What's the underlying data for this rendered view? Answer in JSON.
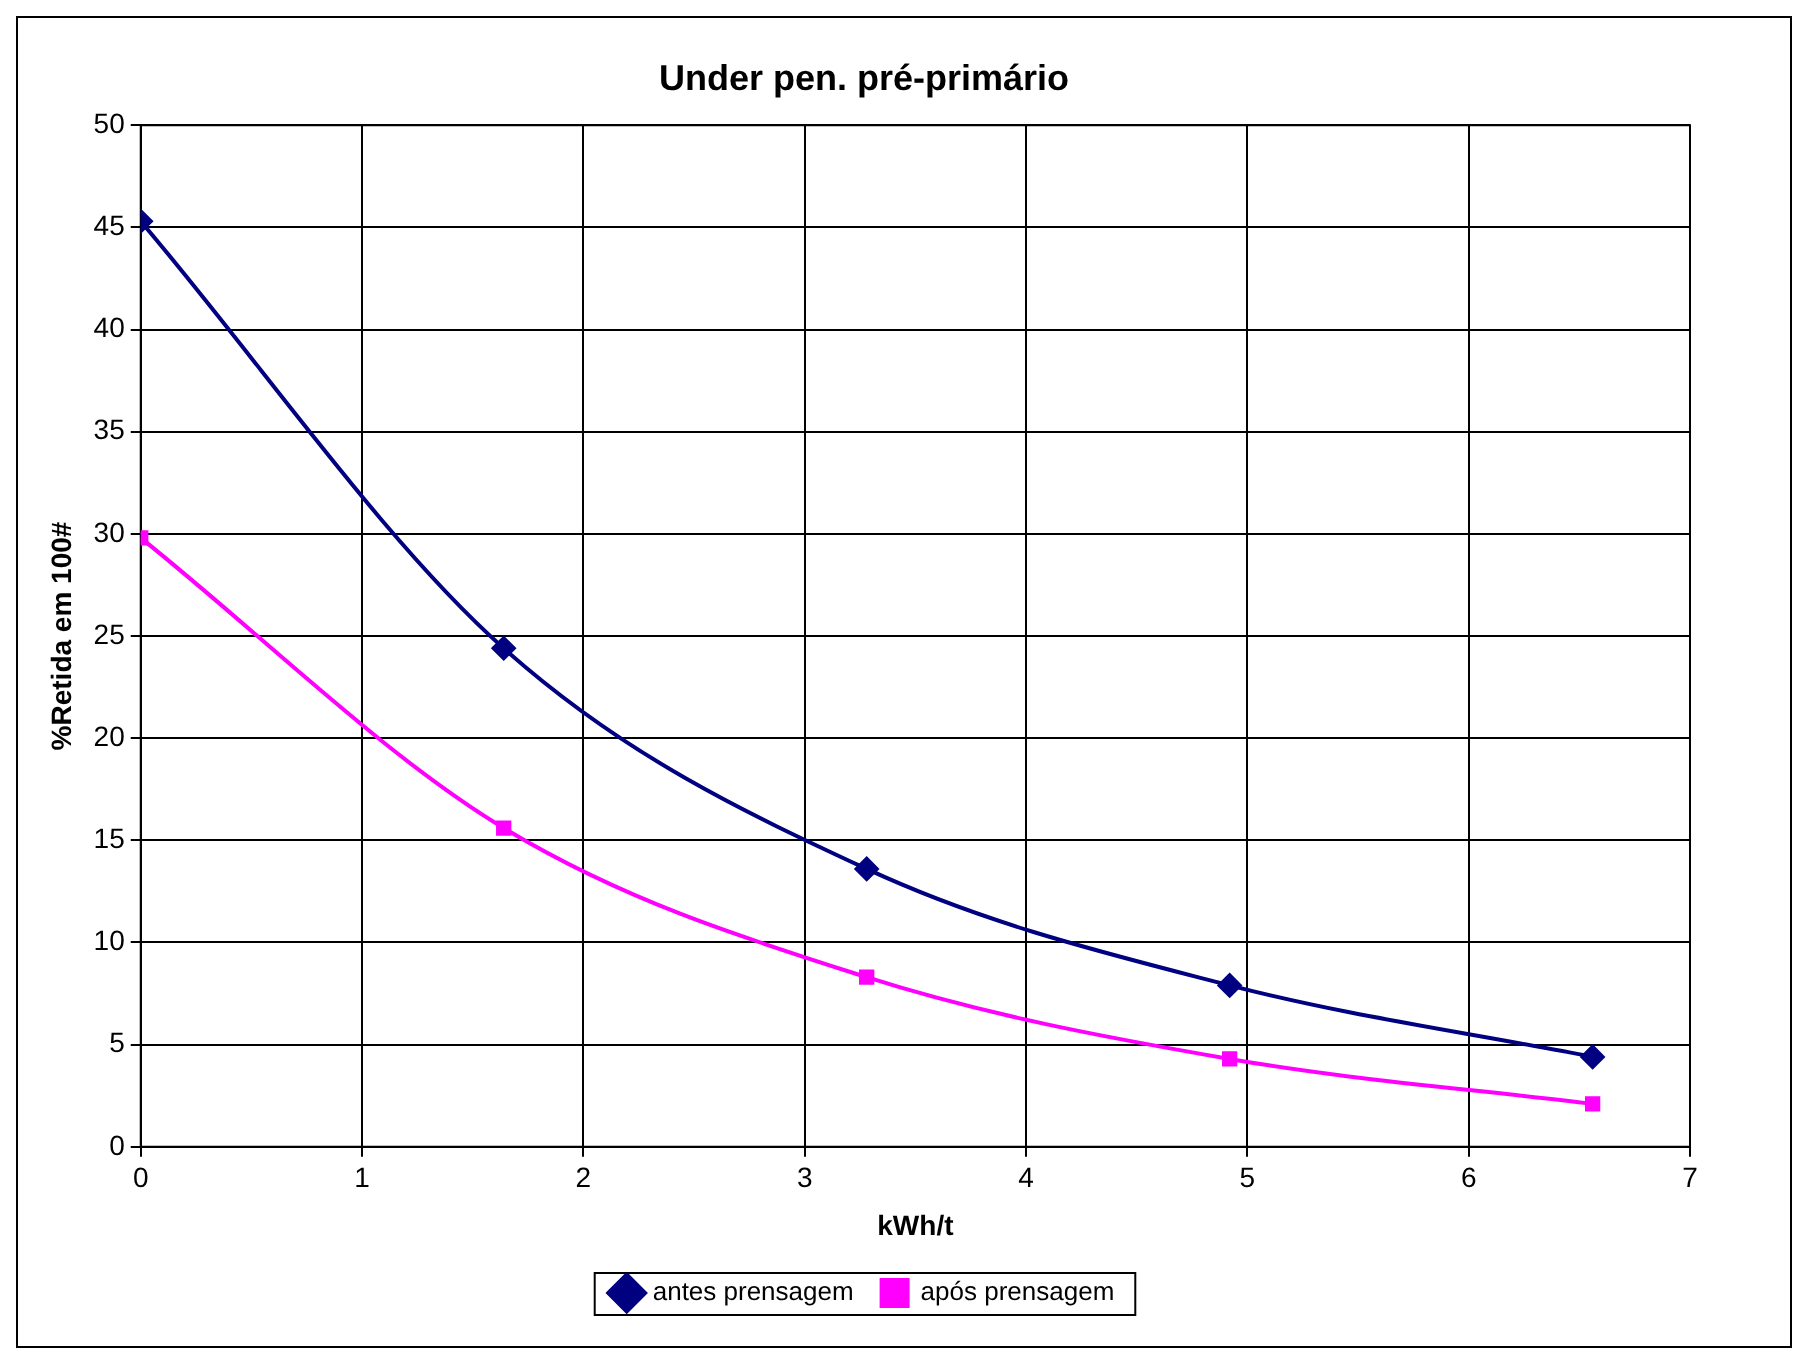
{
  "chart_data": {
    "type": "line",
    "title": "Under pen. pré-primário",
    "xlabel": "kWh/t",
    "ylabel": "%Retida em 100#",
    "xlim": [
      0,
      7
    ],
    "xticks": [
      0,
      1,
      2,
      3,
      4,
      5,
      6,
      7
    ],
    "ylim": [
      0,
      50
    ],
    "yticks": [
      0,
      5,
      10,
      15,
      20,
      25,
      30,
      35,
      40,
      45,
      50
    ],
    "grid": true,
    "legend": "bottom",
    "series": [
      {
        "name": "antes prensagem",
        "color": "#000080",
        "marker": "diamond",
        "x": [
          0,
          1.64,
          3.28,
          4.92,
          6.56
        ],
        "values": [
          45.3,
          24.4,
          13.6,
          7.9,
          4.4
        ]
      },
      {
        "name": "após prensagem",
        "color": "#ff00ff",
        "marker": "square",
        "x": [
          0,
          1.64,
          3.28,
          4.92,
          6.56
        ],
        "values": [
          29.8,
          15.6,
          8.3,
          4.3,
          2.1
        ]
      }
    ]
  }
}
